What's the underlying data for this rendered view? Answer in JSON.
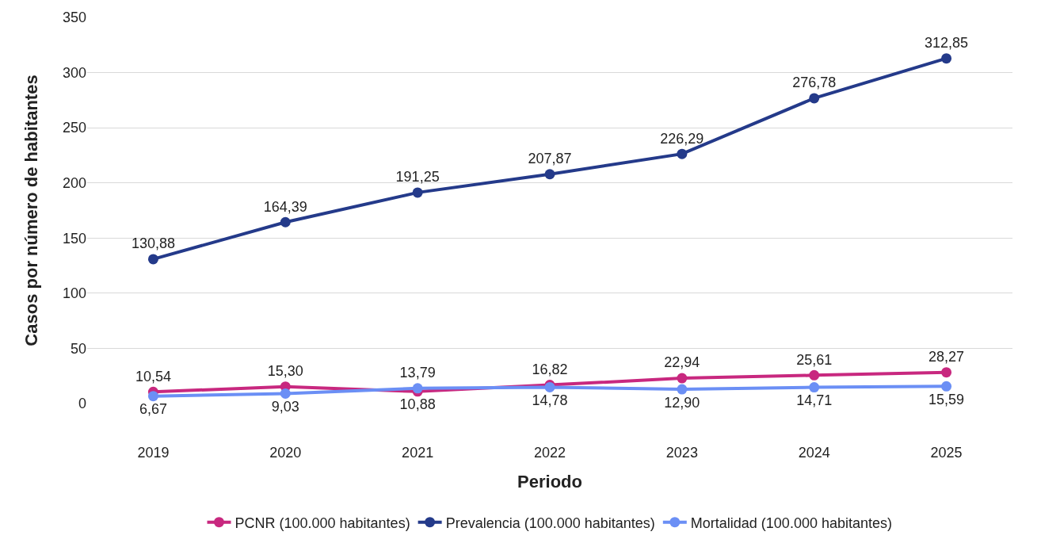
{
  "chart_data": {
    "type": "line",
    "xlabel": "Periodo",
    "ylabel": "Casos por número de habitantes",
    "categories": [
      "2019",
      "2020",
      "2021",
      "2022",
      "2023",
      "2024",
      "2025"
    ],
    "series": [
      {
        "name": "PCNR (100.000 habitantes)",
        "color": "#c8287f",
        "values": [
          10.54,
          15.3,
          10.88,
          16.82,
          22.94,
          25.61,
          28.27
        ],
        "value_labels": [
          "10,54",
          "15,30",
          "10,88",
          "16,82",
          "22,94",
          "25,61",
          "28,27"
        ]
      },
      {
        "name": "Prevalencia (100.000 habitantes)",
        "color": "#243a8a",
        "values": [
          130.88,
          164.39,
          191.25,
          207.87,
          226.29,
          276.78,
          312.85
        ],
        "value_labels": [
          "130,88",
          "164,39",
          "191,25",
          "207,87",
          "226,29",
          "276,78",
          "312,85"
        ]
      },
      {
        "name": "Mortalidad (100.000 habitantes)",
        "color": "#6b8ff5",
        "values": [
          6.67,
          9.03,
          13.79,
          14.78,
          12.9,
          14.71,
          15.59
        ],
        "value_labels": [
          "6,67",
          "9,03",
          "13,79",
          "14,78",
          "12,90",
          "14,71",
          "15,59"
        ]
      }
    ],
    "ylim": [
      0,
      350
    ],
    "yticks": [
      0,
      50,
      100,
      150,
      200,
      250,
      300,
      350
    ],
    "grid": "y",
    "legend": "bottom",
    "marker": "circle",
    "line_style": "solid"
  }
}
